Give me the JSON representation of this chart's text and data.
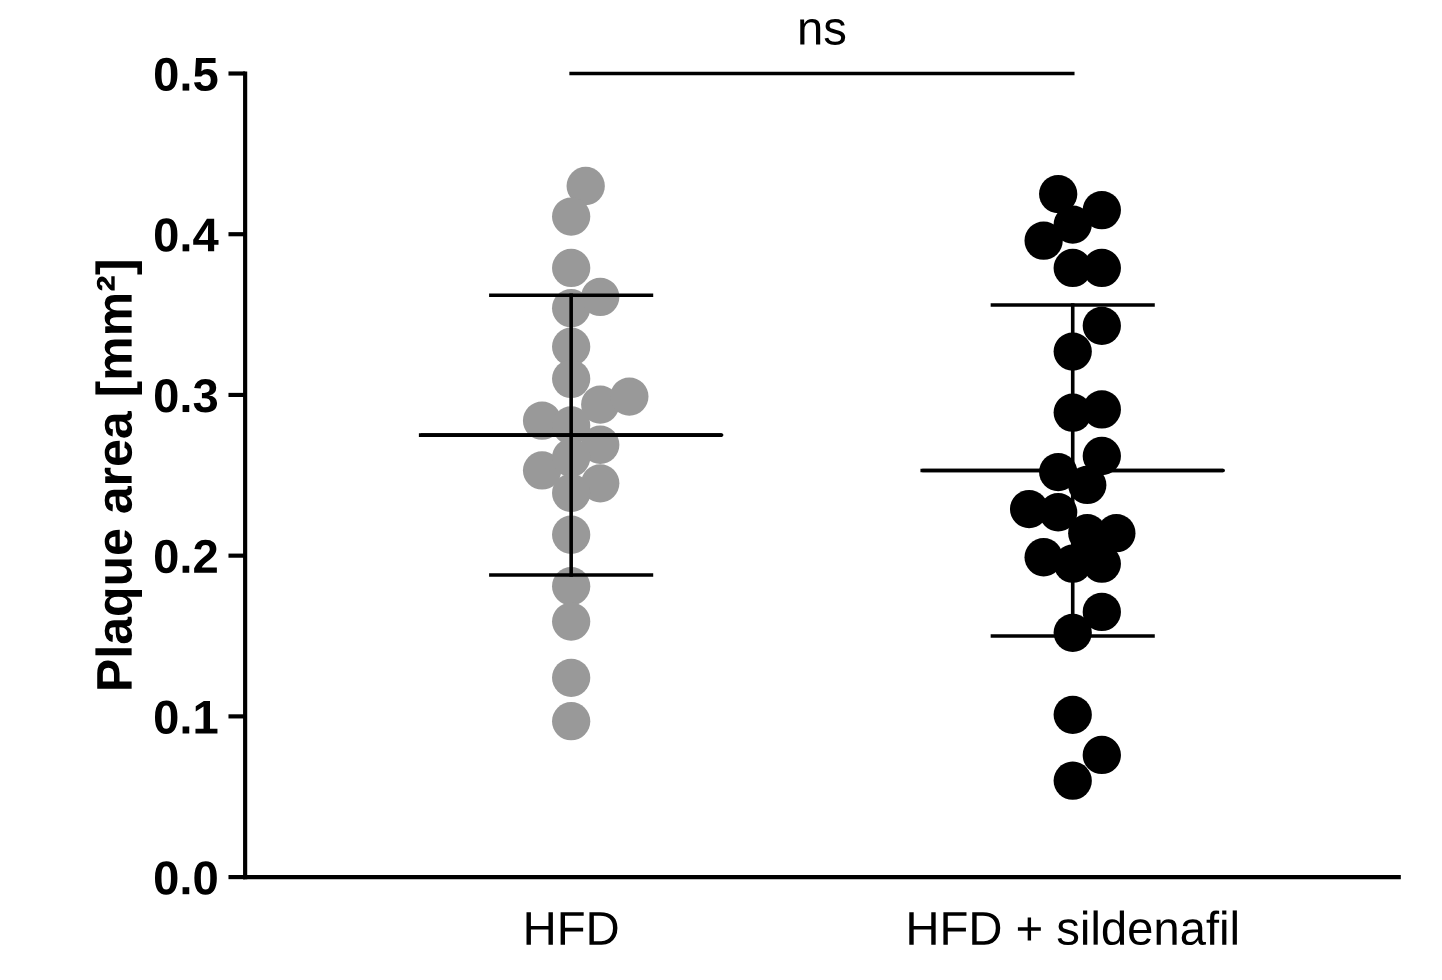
{
  "chart_data": {
    "type": "scatter",
    "ylabel": "Plaque area [mm²]",
    "categories": [
      "HFD",
      "HFD + sildenafil"
    ],
    "ylim": [
      0,
      0.5
    ],
    "yticks": [
      {
        "value": 0,
        "label": "0.0"
      },
      0.1,
      0.2,
      0.3,
      0.4,
      0.5
    ],
    "grid": false,
    "annotations": [
      "ns"
    ],
    "series": [
      {
        "color": "#999999",
        "marker": "circle",
        "x": [
          "HFD",
          "HFD",
          "HFD",
          "HFD",
          "HFD",
          "HFD",
          "HFD",
          "HFD",
          "HFD",
          "HFD",
          "HFD",
          "HFD",
          "HFD",
          "HFD",
          "HFD",
          "HFD",
          "HFD",
          "HFD",
          "HFD",
          "HFD",
          "HFD"
        ],
        "values": [
          0.43,
          0.411,
          0.379,
          0.354,
          0.361,
          0.33,
          0.31,
          0.284,
          0.294,
          0.299,
          0.281,
          0.269,
          0.253,
          0.245,
          0.261,
          0.239,
          0.213,
          0.181,
          0.159,
          0.124,
          0.097
        ]
      },
      {
        "color": "#000000",
        "marker": "circle",
        "x": [
          "HFD + sildenafil",
          "HFD + sildenafil",
          "HFD + sildenafil",
          "HFD + sildenafil",
          "HFD + sildenafil",
          "HFD + sildenafil",
          "HFD + sildenafil",
          "HFD + sildenafil",
          "HFD + sildenafil",
          "HFD + sildenafil",
          "HFD + sildenafil",
          "HFD + sildenafil",
          "HFD + sildenafil",
          "HFD + sildenafil",
          "HFD + sildenafil",
          "HFD + sildenafil",
          "HFD + sildenafil",
          "HFD + sildenafil",
          "HFD + sildenafil",
          "HFD + sildenafil",
          "HFD + sildenafil",
          "HFD + sildenafil",
          "HFD + sildenafil",
          "HFD + sildenafil",
          "HFD + sildenafil"
        ],
        "values": [
          0.425,
          0.415,
          0.406,
          0.379,
          0.379,
          0.396,
          0.343,
          0.327,
          0.291,
          0.289,
          0.262,
          0.244,
          0.252,
          0.229,
          0.227,
          0.199,
          0.214,
          0.214,
          0.195,
          0.195,
          0.165,
          0.152,
          0.101,
          0.076,
          0.06
        ]
      },
      {
        "type": "box",
        "color": "#000000",
        "boxes": [
          {
            "low": 0.188,
            "q1": 0.275,
            "median": 0.275,
            "q3": 0.275,
            "high": 0.362
          },
          {
            "low": 0.15,
            "q1": 0.253,
            "median": 0.253,
            "q3": 0.253,
            "high": 0.356
          }
        ]
      }
    ]
  }
}
